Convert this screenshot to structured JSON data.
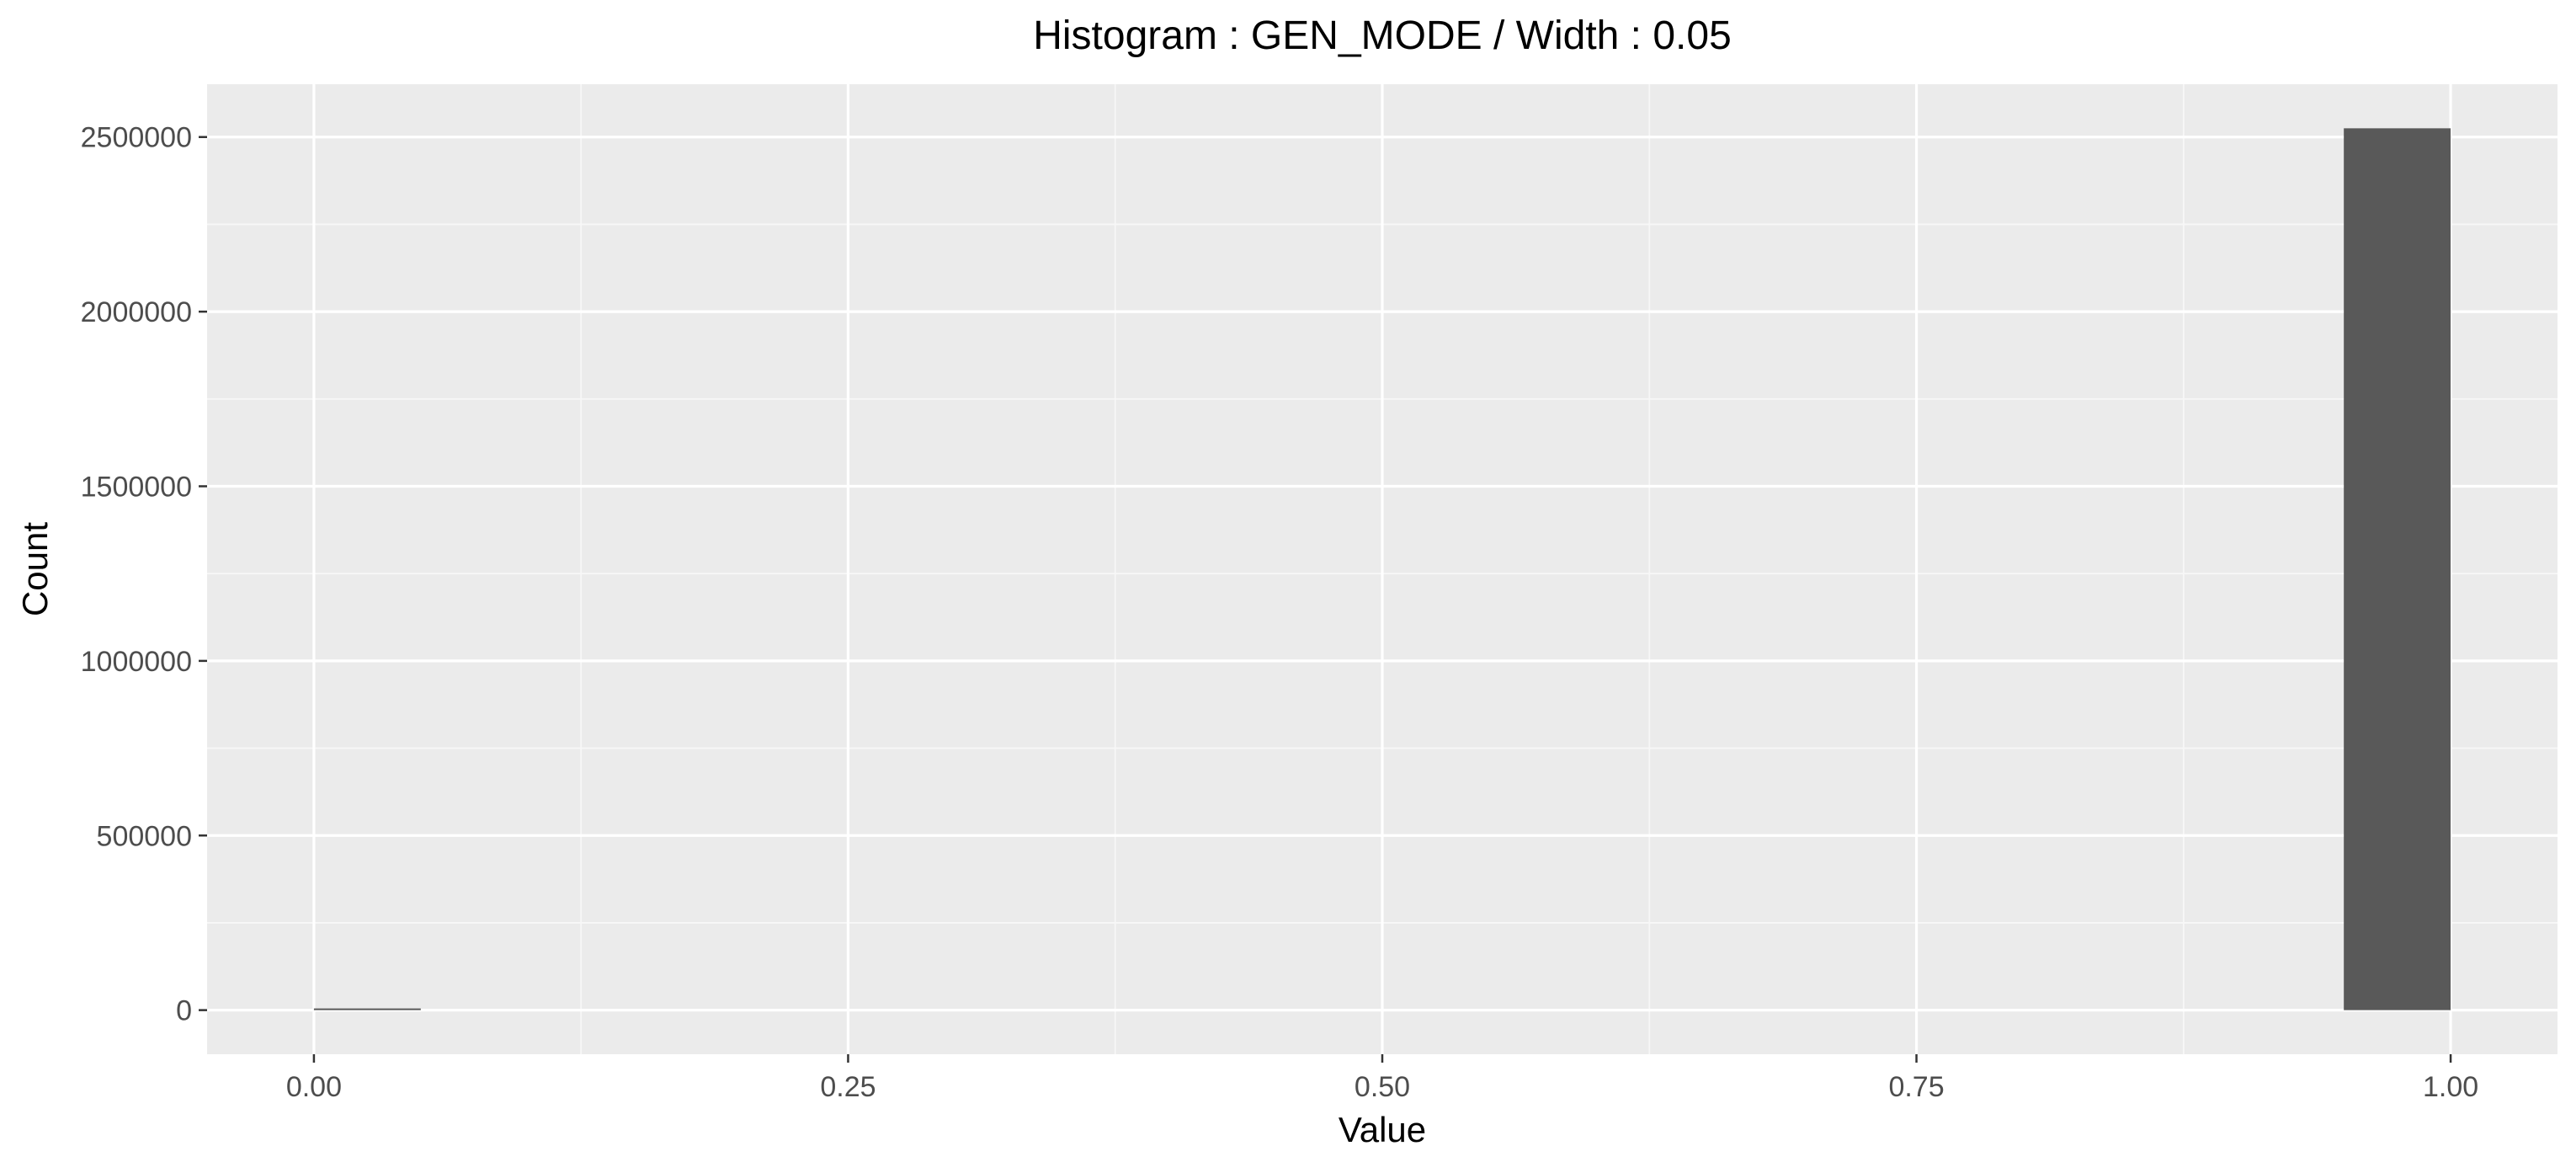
{
  "chart_data": {
    "type": "bar",
    "title": "Histogram : GEN_MODE / Width : 0.05",
    "xlabel": "Value",
    "ylabel": "Count",
    "bin_width": 0.05,
    "bins": [
      {
        "x_start": 0.0,
        "x_end": 0.05,
        "count": 2500
      },
      {
        "x_start": 0.95,
        "x_end": 1.0,
        "count": 2525000
      }
    ],
    "xlim": [
      -0.05,
      1.05
    ],
    "ylim": [
      -126250,
      2651250
    ],
    "x_ticks": [
      0.0,
      0.25,
      0.5,
      0.75,
      1.0
    ],
    "x_tick_labels": [
      "0.00",
      "0.25",
      "0.50",
      "0.75",
      "1.00"
    ],
    "y_ticks": [
      0,
      500000,
      1000000,
      1500000,
      2000000,
      2500000
    ],
    "y_tick_labels": [
      "0",
      "500000",
      "1000000",
      "1500000",
      "2000000",
      "2500000"
    ],
    "grid": true,
    "legend": "none",
    "colors": {
      "panel_background": "#ebebeb",
      "grid_major": "#ffffff",
      "grid_minor": "#f7f7f7",
      "bar_fill": "#595959",
      "tick_label": "#4d4d4d",
      "title": "#000000"
    }
  }
}
